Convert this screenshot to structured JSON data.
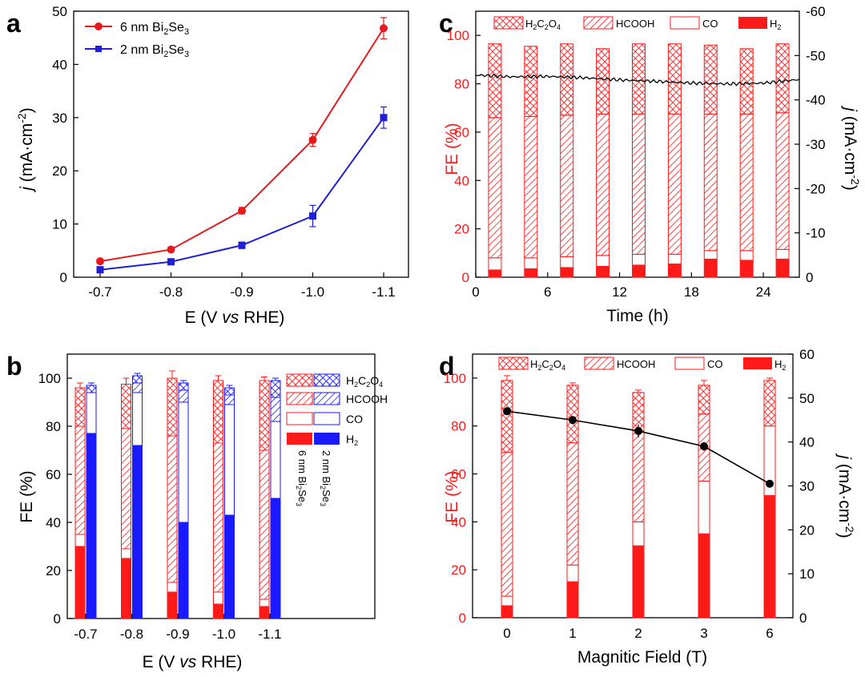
{
  "chart_data": [
    {
      "panel": "a",
      "type": "line",
      "xlabel_prefix": "E (V ",
      "xlabel_italic": "vs",
      "xlabel_suffix": " RHE)",
      "ylabel_italic": "j",
      "ylabel_rest": " (mA·cm",
      "ylabel_sup": "-2",
      "ylabel_end": ")",
      "categories": [
        "-0.7",
        "-0.8",
        "-0.9",
        "-1.0",
        "-1.1"
      ],
      "ylim": [
        0,
        50
      ],
      "yticks": [
        "0",
        "10",
        "20",
        "30",
        "40",
        "50"
      ],
      "series": [
        {
          "name_pre": "6 nm Bi",
          "name_sub1": "2",
          "name_mid": "Se",
          "name_sub2": "3",
          "color": "#e41a1c",
          "marker": "circle",
          "values": [
            3.0,
            5.2,
            12.5,
            25.8,
            46.8
          ],
          "errors": [
            0.4,
            0.4,
            0.6,
            1.2,
            2.0
          ]
        },
        {
          "name_pre": "2 nm Bi",
          "name_sub1": "2",
          "name_mid": "Se",
          "name_sub2": "3",
          "color": "#1f1fd6",
          "marker": "square",
          "values": [
            1.4,
            2.9,
            6.0,
            11.5,
            30.0
          ],
          "errors": [
            0.3,
            0.3,
            0.6,
            2.0,
            2.0
          ]
        }
      ]
    },
    {
      "panel": "b",
      "type": "bar",
      "ylabel": "FE (%)",
      "xlabel_prefix": "E (V ",
      "xlabel_italic": "vs",
      "xlabel_suffix": " RHE)",
      "categories": [
        "-0.7",
        "-0.8",
        "-0.9",
        "-1.0",
        "-1.1"
      ],
      "ylim": [
        0,
        110
      ],
      "yticks": [
        "0",
        "20",
        "40",
        "60",
        "80",
        "100"
      ],
      "legend": [
        "H2C2O4",
        "HCOOH",
        "CO",
        "H2"
      ],
      "legend_text": {
        "h2c2o4": {
          "a": "H",
          "b": "2",
          "c": "C",
          "d": "2",
          "e": "O",
          "f": "4"
        },
        "hcooh": "HCOOH",
        "co": "CO",
        "h2": {
          "a": "H",
          "b": "2"
        }
      },
      "rotated_labels": [
        {
          "pre": "6 nm Bi",
          "s1": "2",
          "mid": "Se",
          "s2": "3"
        },
        {
          "pre": "2 nm Bi",
          "s1": "2",
          "mid": "Se",
          "s2": "3"
        }
      ],
      "colors": {
        "six": "#ff1a1a",
        "two": "#1a1aff"
      },
      "series": [
        {
          "name": "6 nm Bi2Se3",
          "H2": [
            30,
            25,
            11,
            6,
            5
          ],
          "CO": [
            5,
            4,
            4,
            5,
            3
          ],
          "HCOOH": [
            45,
            50,
            61,
            62,
            62
          ],
          "H2C2O4": [
            16,
            18.5,
            24,
            26,
            29
          ],
          "error_top": [
            2,
            2.5,
            3,
            2,
            1.5
          ]
        },
        {
          "name": "2 nm Bi2Se3",
          "H2": [
            77,
            72,
            40,
            43,
            50
          ],
          "CO": [
            17,
            22,
            50,
            46,
            32
          ],
          "HCOOH": [
            0,
            4,
            5,
            4,
            10
          ],
          "H2C2O4": [
            3,
            3,
            3,
            3,
            7
          ],
          "error_top": [
            1,
            1,
            1,
            1,
            1
          ]
        }
      ]
    },
    {
      "panel": "c",
      "type": "bar",
      "xlabel": "Time (h)",
      "ylabel": "FE (%)",
      "ylabel_right_italic": "j",
      "ylabel_right_rest": " (mA·cm",
      "ylabel_right_sup": "-2",
      "ylabel_right_end": ")",
      "xlim": [
        0,
        27
      ],
      "xticks": [
        "0",
        "6",
        "12",
        "18",
        "24"
      ],
      "ylim": [
        0,
        110
      ],
      "yticks": [
        "0",
        "20",
        "40",
        "60",
        "80",
        "100"
      ],
      "y2lim": [
        0,
        -60
      ],
      "y2ticks": [
        "0",
        "-10",
        "-20",
        "-30",
        "-40",
        "-50",
        "-60"
      ],
      "legend": [
        "H2C2O4",
        "HCOOH",
        "CO",
        "H2"
      ],
      "legend_text": {
        "h2c2o4": {
          "a": "H",
          "b": "2",
          "c": "C",
          "d": "2",
          "e": "O",
          "f": "4"
        },
        "hcooh": "HCOOH",
        "co": "CO",
        "h2": {
          "a": "H",
          "b": "2"
        }
      },
      "bar_x": [
        1.6,
        4.6,
        7.6,
        10.6,
        13.6,
        16.6,
        19.6,
        22.6,
        25.6
      ],
      "H2": [
        3,
        3.5,
        4,
        4.5,
        5,
        5.5,
        7.5,
        7,
        7.5
      ],
      "CO": [
        5,
        4.5,
        4.5,
        4.5,
        4.5,
        4,
        3.5,
        4,
        4
      ],
      "HCOOH": [
        58,
        58.5,
        58.5,
        58.5,
        58,
        58,
        56.5,
        56.5,
        56.5
      ],
      "H2C2O4": [
        30.5,
        29,
        29.5,
        27,
        29,
        29,
        28.5,
        27,
        28.5
      ],
      "current_x": [
        0,
        3,
        6,
        9,
        12,
        15,
        18,
        21,
        24,
        27
      ],
      "current_y": [
        -45.6,
        -45.2,
        -45.3,
        -45.0,
        -44.5,
        -44.2,
        -43.8,
        -43.6,
        -43.8,
        -44.6
      ]
    },
    {
      "panel": "d",
      "type": "bar",
      "xlabel": "Magnitic Field (T)",
      "ylabel": "FE (%)",
      "ylabel_right_italic": "j",
      "ylabel_right_rest": " (mA·cm",
      "ylabel_right_sup": "-2",
      "ylabel_right_end": ")",
      "categories": [
        "0",
        "1",
        "2",
        "3",
        "6"
      ],
      "ylim": [
        0,
        110
      ],
      "yticks": [
        "0",
        "20",
        "40",
        "60",
        "80",
        "100"
      ],
      "y2lim": [
        0,
        60
      ],
      "y2ticks": [
        "0",
        "10",
        "20",
        "30",
        "40",
        "50",
        "60"
      ],
      "legend": [
        "H2C2O4",
        "HCOOH",
        "CO",
        "H2"
      ],
      "legend_text": {
        "h2c2o4": {
          "a": "H",
          "b": "2",
          "c": "C",
          "d": "2",
          "e": "O",
          "f": "4"
        },
        "hcooh": "HCOOH",
        "co": "CO",
        "h2": {
          "a": "H",
          "b": "2"
        }
      },
      "H2": [
        5,
        15,
        30,
        35,
        51
      ],
      "CO": [
        4,
        7,
        10,
        22,
        29
      ],
      "HCOOH": [
        60,
        51,
        38,
        28,
        0
      ],
      "H2C2O4": [
        30,
        24,
        16,
        12,
        19
      ],
      "error_top": [
        2,
        1,
        1,
        2,
        1
      ],
      "current": [
        47,
        45,
        42.5,
        39,
        30.5
      ],
      "current_err": [
        0.6,
        0.6,
        1.5,
        1.0,
        0.8
      ]
    }
  ]
}
